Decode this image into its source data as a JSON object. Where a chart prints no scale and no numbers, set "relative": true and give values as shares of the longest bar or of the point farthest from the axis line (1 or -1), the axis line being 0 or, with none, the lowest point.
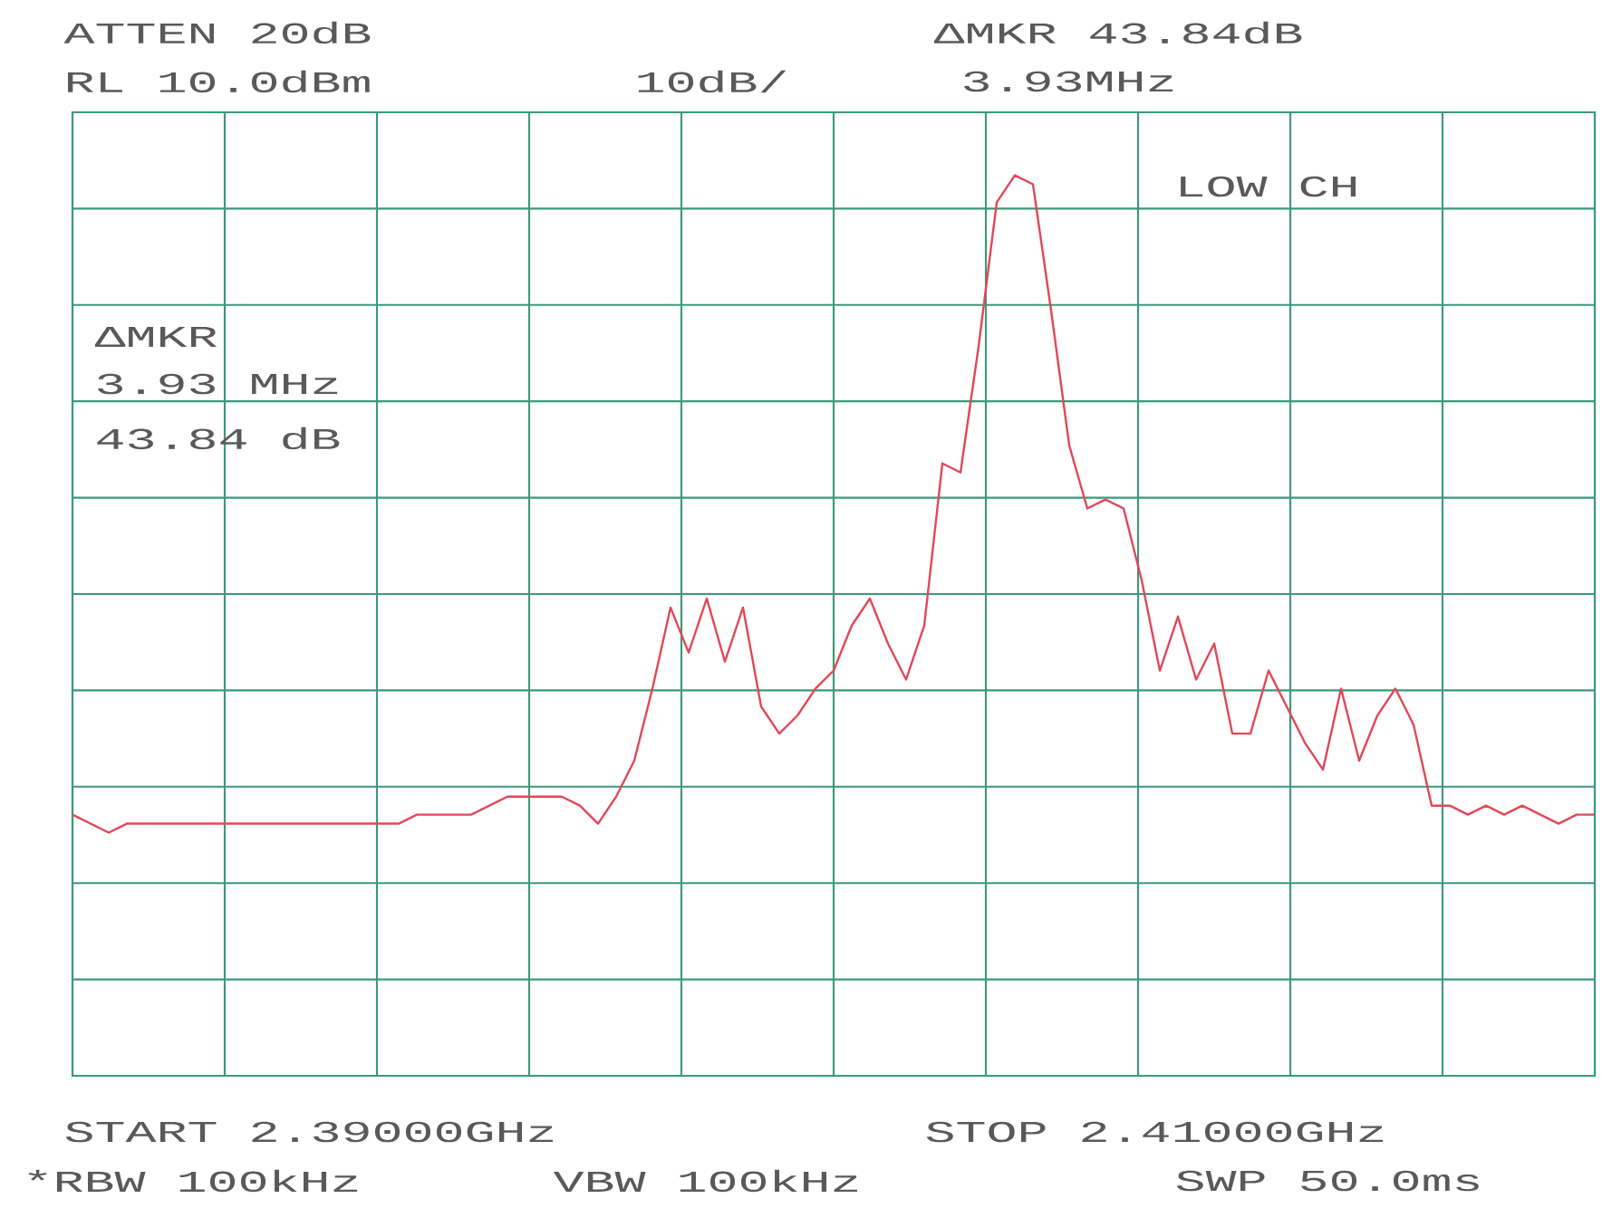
{
  "chart_data": {
    "type": "line",
    "relative": true,
    "categories": [
      null,
      null,
      null,
      null,
      null,
      null,
      null,
      null,
      null,
      null,
      null,
      null,
      null,
      null,
      null,
      null,
      null,
      null,
      null,
      null,
      null,
      null,
      null,
      null,
      null,
      null,
      null,
      null,
      null,
      null,
      null,
      null,
      null,
      null,
      null,
      null,
      null,
      null,
      null,
      null,
      null,
      null,
      null,
      null,
      null,
      null,
      null,
      null,
      null,
      null,
      null,
      null,
      null,
      null,
      null,
      null,
      null,
      null,
      null,
      null,
      null,
      null,
      null,
      null,
      null,
      null,
      null,
      null,
      null,
      null,
      null,
      null,
      null,
      null,
      null,
      null,
      null,
      null,
      null,
      null,
      null,
      null,
      null,
      null,
      null
    ],
    "series": [
      {
        "color": "#e04858",
        "values": [
          0.29,
          0.28,
          0.27,
          0.28,
          0.28,
          0.28,
          0.28,
          0.28,
          0.28,
          0.28,
          0.28,
          0.28,
          0.28,
          0.28,
          0.28,
          0.28,
          0.28,
          0.28,
          0.28,
          0.29,
          0.29,
          0.29,
          0.29,
          0.3,
          0.31,
          0.31,
          0.31,
          0.31,
          0.3,
          0.28,
          0.31,
          0.35,
          0.43,
          0.52,
          0.47,
          0.53,
          0.46,
          0.52,
          0.41,
          0.38,
          0.4,
          0.43,
          0.45,
          0.5,
          0.53,
          0.48,
          0.44,
          0.5,
          0.68,
          0.67,
          0.81,
          0.97,
          1,
          0.99,
          0.85,
          0.7,
          0.63,
          0.64,
          0.63,
          0.55,
          0.45,
          0.51,
          0.44,
          0.48,
          0.38,
          0.38,
          0.45,
          0.41,
          0.37,
          0.34,
          0.43,
          0.35,
          0.4,
          0.43,
          0.39,
          0.3,
          0.3,
          0.29,
          0.3,
          0.29,
          0.3,
          0.29,
          0.28,
          0.29,
          0.29
        ]
      }
    ],
    "grid": true,
    "annotations": [
      "ATTEN 20dB",
      "RL 10.0dBm",
      "10dB/",
      "ΔMKR 43.84dB",
      "3.93MHz",
      "LOW CH",
      "ΔMKR",
      "3.93 MHz",
      "43.84 dB",
      "START 2.39000GHz",
      "STOP 2.41000GHz",
      "*RBW 100kHz",
      "VBW 100kHz",
      "SWP 50.0ms"
    ]
  }
}
